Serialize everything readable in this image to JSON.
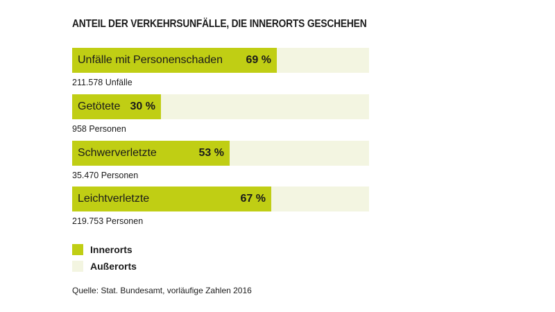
{
  "colors": {
    "innerorts": "#c0ce14",
    "ausserorts": "#f3f5e1"
  },
  "chart_data": {
    "type": "bar",
    "orientation": "horizontal-stacked-percent",
    "title": "ANTEIL DER VERKEHRSUNFÄLLE, DIE INNERORTS GESCHEHEN",
    "categories": [
      "Unfälle mit Personenschaden",
      "Getötete",
      "Schwerverletzte",
      "Leichtverletzte"
    ],
    "value_labels": [
      "69 %",
      "30 %",
      "53 %",
      "67 %"
    ],
    "totals": [
      "211.578 Unfälle",
      "958 Personen",
      "35.470 Personen",
      "219.753 Personen"
    ],
    "series": [
      {
        "name": "Innerorts",
        "values": [
          69,
          30,
          53,
          67
        ]
      },
      {
        "name": "Außerorts",
        "values": [
          31,
          70,
          47,
          33
        ]
      }
    ],
    "xlim": [
      0,
      100
    ],
    "legend": "bottom-left",
    "source": "Quelle: Stat. Bundesamt, vorläufige Zahlen 2016"
  }
}
